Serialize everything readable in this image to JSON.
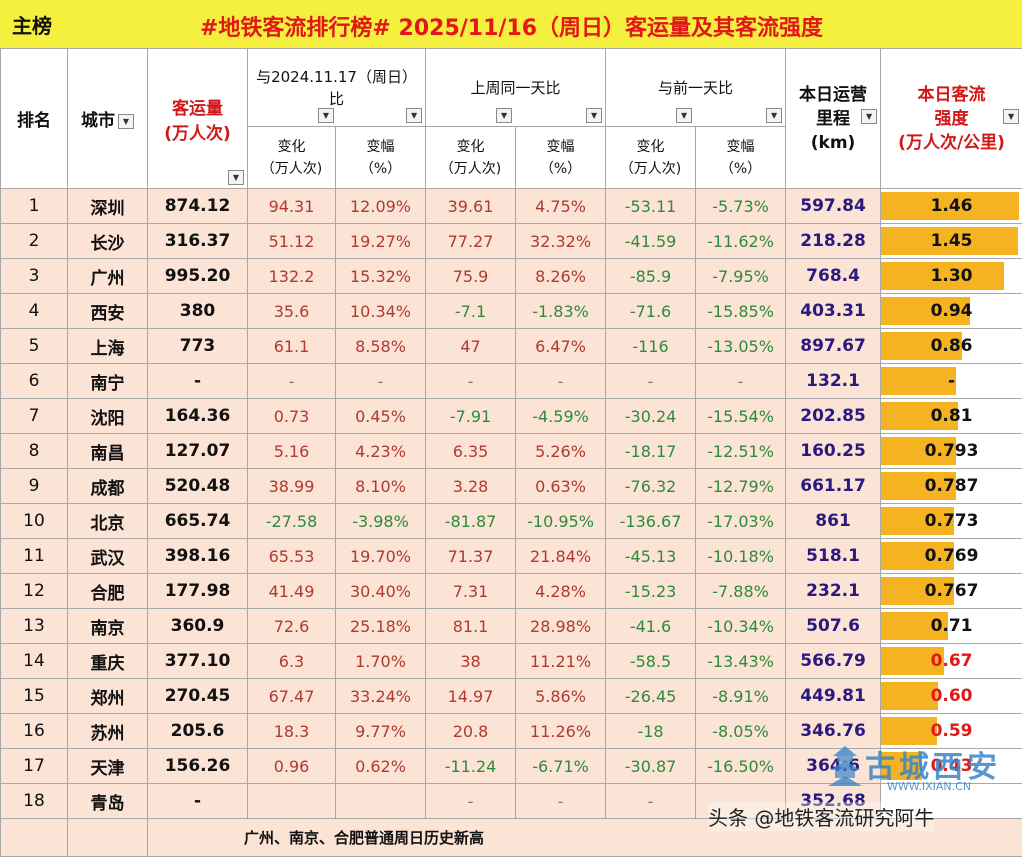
{
  "header": {
    "label": "主榜",
    "title": "#地铁客流排行榜# 2025/11/16（周日）客运量及其客流强度"
  },
  "columns": {
    "rank": "排名",
    "city": "城市",
    "volume_l1": "客运量",
    "volume_l2": "(万人次)",
    "grp_yoy": "与2024.11.17（周日）比",
    "grp_wow": "上周同一天比",
    "grp_dod": "与前一天比",
    "change_l1": "变化",
    "change_l2": "（万人次)",
    "pct_l1": "变幅",
    "pct_l2": "（%）",
    "mileage_l1": "本日运营",
    "mileage_l2": "里程",
    "mileage_l3": "(km)",
    "intensity_l1": "本日客流",
    "intensity_l2": "强度",
    "intensity_l3": "(万人次/公里)"
  },
  "filter_icon": "dropdown-arrow-icon",
  "colors": {
    "title_bg": "#f5ef3d",
    "title_text": "#e01818",
    "row_bg": "#fbe3d5",
    "bar": "#f5b221",
    "positive": "#b03a2e",
    "negative": "#2e8b3a"
  },
  "rows": [
    {
      "rank": "1",
      "city": "深圳",
      "volume": "874.12",
      "yoy_chg": "94.31",
      "yoy_pct": "12.09%",
      "wow_chg": "39.61",
      "wow_pct": "4.75%",
      "dod_chg": "-53.11",
      "dod_pct": "-5.73%",
      "mileage": "597.84",
      "intensity": "1.46",
      "intensity_value": 1.46
    },
    {
      "rank": "2",
      "city": "长沙",
      "volume": "316.37",
      "yoy_chg": "51.12",
      "yoy_pct": "19.27%",
      "wow_chg": "77.27",
      "wow_pct": "32.32%",
      "dod_chg": "-41.59",
      "dod_pct": "-11.62%",
      "mileage": "218.28",
      "intensity": "1.45",
      "intensity_value": 1.45
    },
    {
      "rank": "3",
      "city": "广州",
      "volume": "995.20",
      "yoy_chg": "132.2",
      "yoy_pct": "15.32%",
      "wow_chg": "75.9",
      "wow_pct": "8.26%",
      "dod_chg": "-85.9",
      "dod_pct": "-7.95%",
      "mileage": "768.4",
      "intensity": "1.30",
      "intensity_value": 1.3
    },
    {
      "rank": "4",
      "city": "西安",
      "volume": "380",
      "yoy_chg": "35.6",
      "yoy_pct": "10.34%",
      "wow_chg": "-7.1",
      "wow_pct": "-1.83%",
      "dod_chg": "-71.6",
      "dod_pct": "-15.85%",
      "mileage": "403.31",
      "intensity": "0.94",
      "intensity_value": 0.94
    },
    {
      "rank": "5",
      "city": "上海",
      "volume": "773",
      "yoy_chg": "61.1",
      "yoy_pct": "8.58%",
      "wow_chg": "47",
      "wow_pct": "6.47%",
      "dod_chg": "-116",
      "dod_pct": "-13.05%",
      "mileage": "897.67",
      "intensity": "0.86",
      "intensity_value": 0.86
    },
    {
      "rank": "6",
      "city": "南宁",
      "volume": "-",
      "yoy_chg": "-",
      "yoy_pct": "-",
      "wow_chg": "-",
      "wow_pct": "-",
      "dod_chg": "-",
      "dod_pct": "-",
      "mileage": "132.1",
      "intensity": "-",
      "intensity_value": 0.79
    },
    {
      "rank": "7",
      "city": "沈阳",
      "volume": "164.36",
      "yoy_chg": "0.73",
      "yoy_pct": "0.45%",
      "wow_chg": "-7.91",
      "wow_pct": "-4.59%",
      "dod_chg": "-30.24",
      "dod_pct": "-15.54%",
      "mileage": "202.85",
      "intensity": "0.81",
      "intensity_value": 0.81
    },
    {
      "rank": "8",
      "city": "南昌",
      "volume": "127.07",
      "yoy_chg": "5.16",
      "yoy_pct": "4.23%",
      "wow_chg": "6.35",
      "wow_pct": "5.26%",
      "dod_chg": "-18.17",
      "dod_pct": "-12.51%",
      "mileage": "160.25",
      "intensity": "0.793",
      "intensity_value": 0.793
    },
    {
      "rank": "9",
      "city": "成都",
      "volume": "520.48",
      "yoy_chg": "38.99",
      "yoy_pct": "8.10%",
      "wow_chg": "3.28",
      "wow_pct": "0.63%",
      "dod_chg": "-76.32",
      "dod_pct": "-12.79%",
      "mileage": "661.17",
      "intensity": "0.787",
      "intensity_value": 0.787
    },
    {
      "rank": "10",
      "city": "北京",
      "volume": "665.74",
      "yoy_chg": "-27.58",
      "yoy_pct": "-3.98%",
      "wow_chg": "-81.87",
      "wow_pct": "-10.95%",
      "dod_chg": "-136.67",
      "dod_pct": "-17.03%",
      "mileage": "861",
      "intensity": "0.773",
      "intensity_value": 0.773
    },
    {
      "rank": "11",
      "city": "武汉",
      "volume": "398.16",
      "yoy_chg": "65.53",
      "yoy_pct": "19.70%",
      "wow_chg": "71.37",
      "wow_pct": "21.84%",
      "dod_chg": "-45.13",
      "dod_pct": "-10.18%",
      "mileage": "518.1",
      "intensity": "0.769",
      "intensity_value": 0.769
    },
    {
      "rank": "12",
      "city": "合肥",
      "volume": "177.98",
      "yoy_chg": "41.49",
      "yoy_pct": "30.40%",
      "wow_chg": "7.31",
      "wow_pct": "4.28%",
      "dod_chg": "-15.23",
      "dod_pct": "-7.88%",
      "mileage": "232.1",
      "intensity": "0.767",
      "intensity_value": 0.767
    },
    {
      "rank": "13",
      "city": "南京",
      "volume": "360.9",
      "yoy_chg": "72.6",
      "yoy_pct": "25.18%",
      "wow_chg": "81.1",
      "wow_pct": "28.98%",
      "dod_chg": "-41.6",
      "dod_pct": "-10.34%",
      "mileage": "507.6",
      "intensity": "0.71",
      "intensity_value": 0.71
    },
    {
      "rank": "14",
      "city": "重庆",
      "volume": "377.10",
      "yoy_chg": "6.3",
      "yoy_pct": "1.70%",
      "wow_chg": "38",
      "wow_pct": "11.21%",
      "dod_chg": "-58.5",
      "dod_pct": "-13.43%",
      "mileage": "566.79",
      "intensity": "0.67",
      "intensity_value": 0.67
    },
    {
      "rank": "15",
      "city": "郑州",
      "volume": "270.45",
      "yoy_chg": "67.47",
      "yoy_pct": "33.24%",
      "wow_chg": "14.97",
      "wow_pct": "5.86%",
      "dod_chg": "-26.45",
      "dod_pct": "-8.91%",
      "mileage": "449.81",
      "intensity": "0.60",
      "intensity_value": 0.6
    },
    {
      "rank": "16",
      "city": "苏州",
      "volume": "205.6",
      "yoy_chg": "18.3",
      "yoy_pct": "9.77%",
      "wow_chg": "20.8",
      "wow_pct": "11.26%",
      "dod_chg": "-18",
      "dod_pct": "-8.05%",
      "mileage": "346.76",
      "intensity": "0.59",
      "intensity_value": 0.59
    },
    {
      "rank": "17",
      "city": "天津",
      "volume": "156.26",
      "yoy_chg": "0.96",
      "yoy_pct": "0.62%",
      "wow_chg": "-11.24",
      "wow_pct": "-6.71%",
      "dod_chg": "-30.87",
      "dod_pct": "-16.50%",
      "mileage": "364.6",
      "intensity": "0.43",
      "intensity_value": 0.43
    },
    {
      "rank": "18",
      "city": "青岛",
      "volume": "-",
      "yoy_chg": "",
      "yoy_pct": "",
      "wow_chg": "-",
      "wow_pct": "-",
      "dod_chg": "-",
      "dod_pct": "",
      "mileage": "352.68",
      "intensity": "",
      "intensity_value": 0
    }
  ],
  "footer_note": "广州、南京、合肥普通周日历史新高",
  "watermark": {
    "credit": "头条 @地铁客流研究阿牛",
    "logo_text": "古城西安",
    "logo_site": "WWW.IXIAN.CN"
  }
}
